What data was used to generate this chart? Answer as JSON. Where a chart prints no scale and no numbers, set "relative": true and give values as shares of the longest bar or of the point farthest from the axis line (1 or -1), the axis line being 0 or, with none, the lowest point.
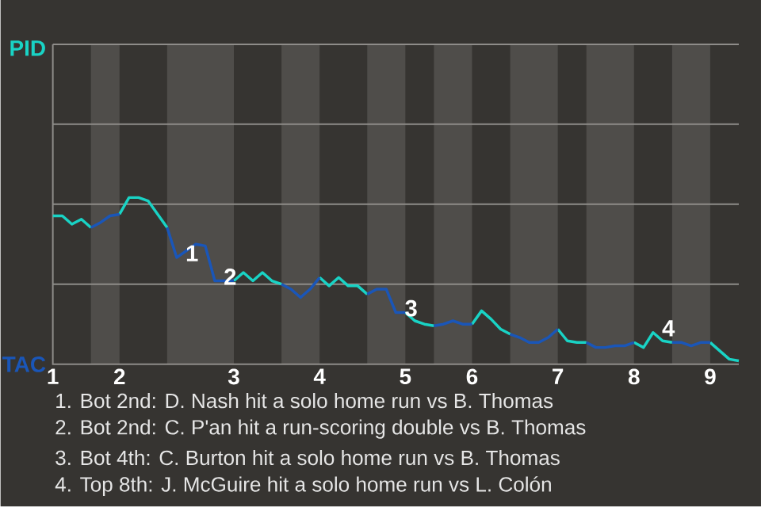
{
  "chart_data": {
    "type": "line",
    "relative": true,
    "marker": "none",
    "line_style": "solid",
    "categories": [
      "1",
      null,
      null,
      null,
      null,
      null,
      null,
      "2",
      null,
      null,
      null,
      null,
      null,
      null,
      null,
      null,
      null,
      null,
      null,
      "3",
      null,
      null,
      null,
      null,
      null,
      null,
      null,
      null,
      "4",
      null,
      null,
      null,
      null,
      null,
      null,
      null,
      null,
      "5",
      null,
      null,
      null,
      null,
      null,
      null,
      "6",
      null,
      null,
      null,
      null,
      null,
      null,
      null,
      null,
      "7",
      null,
      null,
      null,
      null,
      null,
      null,
      null,
      "8",
      null,
      null,
      null,
      null,
      null,
      null,
      null,
      "9",
      null,
      null,
      null
    ],
    "series": [
      {
        "name": "PID",
        "color": "#19d3c5",
        "values": [
          0.89,
          0.89,
          0.84,
          0.87,
          0.82,
          null,
          null,
          0.9,
          1.0,
          1.0,
          0.98,
          0.9,
          0.82,
          null,
          null,
          null,
          null,
          null,
          null,
          0.5,
          0.55,
          0.5,
          0.55,
          0.5,
          0.48,
          null,
          null,
          null,
          0.52,
          0.47,
          0.52,
          0.47,
          0.47,
          0.42,
          null,
          null,
          null,
          0.31,
          0.26,
          0.24,
          0.23,
          null,
          null,
          null,
          0.24,
          0.32,
          0.27,
          0.21,
          0.18,
          null,
          null,
          null,
          null,
          0.21,
          0.14,
          0.13,
          0.13,
          null,
          null,
          null,
          null,
          0.13,
          0.1,
          0.19,
          0.14,
          0.13,
          null,
          null,
          null,
          0.13,
          0.08,
          0.03,
          0.02
        ]
      },
      {
        "name": "TAC",
        "color": "#1a56b8",
        "values": [
          null,
          null,
          null,
          null,
          0.82,
          0.85,
          0.89,
          0.9,
          null,
          null,
          null,
          null,
          0.82,
          0.64,
          0.68,
          0.72,
          0.71,
          0.5,
          0.5,
          0.5,
          null,
          null,
          null,
          null,
          0.48,
          0.45,
          0.4,
          0.45,
          0.52,
          null,
          null,
          null,
          null,
          0.42,
          0.45,
          0.45,
          0.31,
          0.31,
          null,
          null,
          0.23,
          0.24,
          0.26,
          0.24,
          0.24,
          null,
          null,
          null,
          0.18,
          0.16,
          0.13,
          0.13,
          0.16,
          0.21,
          null,
          null,
          0.13,
          0.1,
          0.1,
          0.11,
          0.11,
          0.13,
          null,
          null,
          null,
          0.13,
          0.13,
          0.11,
          0.13,
          0.13,
          null,
          null,
          null
        ]
      }
    ],
    "ref_lines": [
      {
        "axis": "y",
        "value": 0.48,
        "color": "#8e8c89"
      },
      {
        "axis": "y",
        "value": 0.96,
        "color": "#8e8c89"
      },
      {
        "axis": "y",
        "value": 1.44,
        "color": "#8e8c89"
      }
    ],
    "annotations": [
      {
        "text": "1",
        "y": 0.64
      },
      {
        "text": "2",
        "y": 0.5
      },
      {
        "text": "3",
        "y": 0.31
      },
      {
        "text": "4",
        "y": 0.19
      },
      "1. Bot 2nd: D. Nash hit a solo home run vs B. Thomas",
      "2. Bot 2nd: C. P'an hit a run-scoring double vs B. Thomas",
      "3. Bot 4th: C. Burton hit a solo home run vs B. Thomas",
      "4. Top 8th: J. McGuire hit a solo home run vs L. Colón"
    ]
  }
}
